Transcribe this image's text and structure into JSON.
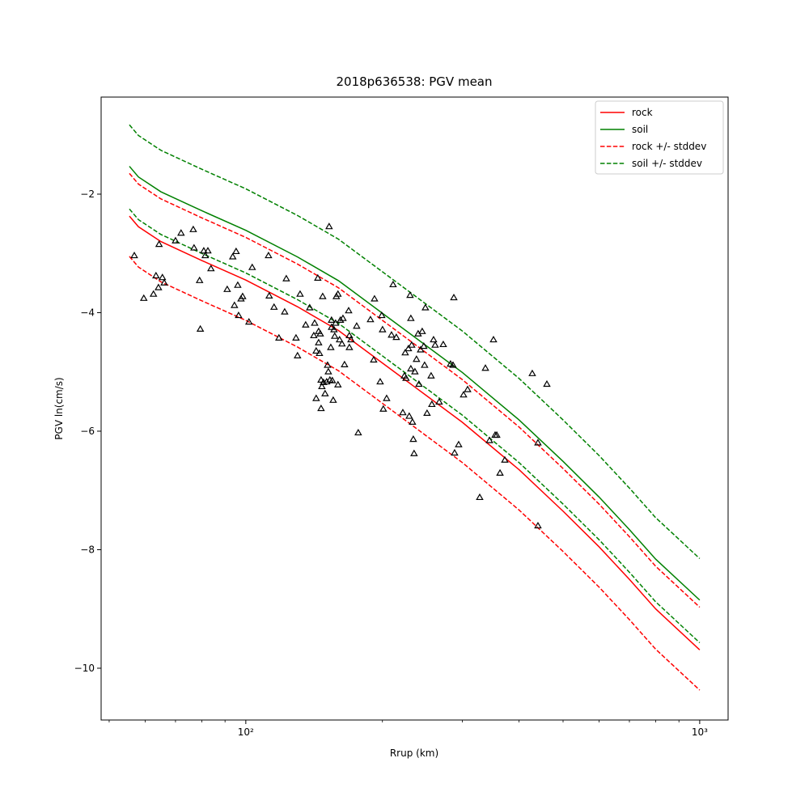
{
  "chart_data": {
    "type": "line",
    "title": "2018p636538: PGV mean",
    "xlabel": "Rrup (km)",
    "ylabel": "PGV ln(cm/s)",
    "xscale": "log",
    "xlim": [
      48.0,
      1155
    ],
    "ylim": [
      -10.874,
      -0.362
    ],
    "xticks": [
      {
        "value": 100,
        "label": "10²"
      },
      {
        "value": 1000,
        "label": "10³"
      }
    ],
    "xminor_ticks": [
      50,
      60,
      70,
      80,
      90,
      200,
      300,
      400,
      500,
      600,
      700,
      800,
      900
    ],
    "yticks": [
      {
        "value": -2,
        "label": "−2"
      },
      {
        "value": -4,
        "label": "−4"
      },
      {
        "value": -6,
        "label": "−6"
      },
      {
        "value": -8,
        "label": "−8"
      },
      {
        "value": -10,
        "label": "−10"
      }
    ],
    "legend": "upper right",
    "x": [
      55.4,
      58,
      65,
      80,
      100,
      130,
      160,
      200,
      250,
      300,
      400,
      500,
      600,
      700,
      800,
      1000
    ],
    "series": [
      {
        "name": "rock",
        "color": "#ff0000",
        "dashed": false,
        "values": [
          -2.37,
          -2.55,
          -2.8,
          -3.12,
          -3.45,
          -3.9,
          -4.3,
          -4.85,
          -5.4,
          -5.85,
          -6.65,
          -7.35,
          -7.95,
          -8.5,
          -9.0,
          -9.69
        ]
      },
      {
        "name": "soil",
        "color": "#008000",
        "dashed": false,
        "values": [
          -1.53,
          -1.71,
          -1.96,
          -2.28,
          -2.61,
          -3.06,
          -3.46,
          -4.01,
          -4.56,
          -5.01,
          -5.81,
          -6.51,
          -7.11,
          -7.66,
          -8.16,
          -8.85
        ]
      },
      {
        "name": "rock +/- stddev",
        "color": "#ff0000",
        "dashed": true,
        "values_upper": [
          -1.65,
          -1.83,
          -2.08,
          -2.4,
          -2.73,
          -3.18,
          -3.58,
          -4.13,
          -4.68,
          -5.13,
          -5.93,
          -6.63,
          -7.23,
          -7.78,
          -8.28,
          -8.97
        ],
        "values_lower": [
          -3.05,
          -3.23,
          -3.48,
          -3.8,
          -4.13,
          -4.58,
          -4.98,
          -5.53,
          -6.08,
          -6.53,
          -7.33,
          -8.03,
          -8.63,
          -9.18,
          -9.68,
          -10.37
        ]
      },
      {
        "name": "soil +/- stddev",
        "color": "#008000",
        "dashed": true,
        "values_upper": [
          -0.83,
          -1.01,
          -1.26,
          -1.58,
          -1.91,
          -2.36,
          -2.76,
          -3.31,
          -3.86,
          -4.31,
          -5.11,
          -5.81,
          -6.41,
          -6.96,
          -7.46,
          -8.15
        ],
        "values_lower": [
          -2.25,
          -2.43,
          -2.68,
          -3.0,
          -3.33,
          -3.78,
          -4.18,
          -4.73,
          -5.28,
          -5.73,
          -6.53,
          -7.23,
          -7.83,
          -8.38,
          -8.88,
          -9.57
        ]
      }
    ],
    "points": {
      "color": "#000000",
      "x": [
        56.8,
        59.6,
        62.6,
        63.4,
        64.2,
        64.4,
        65.5,
        66.1,
        70.0,
        72.0,
        76.6,
        76.9,
        79.1,
        79.4,
        80.8,
        81.4,
        82.5,
        83.8,
        91.0,
        93.6,
        94.4,
        95.2,
        96.0,
        96.4,
        97.6,
        98.4,
        101.6,
        103.3,
        112.2,
        112.6,
        115.4,
        118.3,
        121.8,
        122.8,
        129.0,
        130.0,
        131.7,
        135.5,
        138.3,
        141.2,
        141.8,
        142.9,
        142.9,
        144.1,
        144.7,
        144.7,
        145.3,
        145.9,
        146.5,
        146.5,
        147.1,
        147.7,
        148.3,
        149.5,
        150.7,
        151.4,
        152.0,
        152.6,
        153.2,
        153.9,
        154.5,
        154.5,
        155.1,
        155.8,
        156.4,
        157.0,
        157.7,
        158.3,
        159.6,
        159.6,
        160.9,
        161.6,
        162.9,
        163.7,
        165.0,
        168.5,
        169.1,
        169.1,
        170.5,
        175.5,
        176.9,
        188.2,
        191.3,
        192.1,
        197.7,
        199.3,
        200.1,
        200.9,
        204.3,
        209.4,
        211.1,
        214.6,
        221.8,
        223.6,
        224.5,
        225.4,
        228.2,
        229.1,
        230.1,
        231.0,
        231.0,
        232.0,
        232.9,
        233.9,
        234.8,
        235.8,
        237.7,
        239.7,
        240.7,
        242.7,
        244.7,
        246.7,
        247.7,
        248.7,
        250.8,
        256.0,
        257.0,
        259.2,
        261.3,
        266.7,
        272.3,
        282.5,
        286.1,
        287.3,
        288.4,
        294.4,
        301.8,
        308.1,
        327.6,
        337.2,
        344.2,
        351.3,
        354.2,
        357.2,
        363.1,
        372.1,
        427.7,
        440.2,
        440.2,
        460.6
      ],
      "y": [
        -3.04,
        -3.76,
        -3.69,
        -3.38,
        -3.58,
        -2.85,
        -3.41,
        -3.5,
        -2.79,
        -2.66,
        -2.6,
        -2.91,
        -3.46,
        -4.28,
        -2.96,
        -3.04,
        -2.96,
        -3.26,
        -3.61,
        -3.06,
        -3.88,
        -2.97,
        -3.54,
        -4.05,
        -3.77,
        -3.73,
        -4.16,
        -3.24,
        -3.04,
        -3.72,
        -3.91,
        -4.43,
        -3.99,
        -3.43,
        -4.43,
        -4.73,
        -3.69,
        -4.21,
        -3.92,
        -4.39,
        -4.18,
        -4.65,
        -5.45,
        -3.42,
        -4.32,
        -4.51,
        -4.69,
        -4.36,
        -5.14,
        -5.62,
        -5.25,
        -3.73,
        -5.18,
        -5.37,
        -5.17,
        -4.89,
        -5.0,
        -2.55,
        -5.14,
        -4.59,
        -4.13,
        -4.25,
        -5.15,
        -5.48,
        -4.29,
        -4.4,
        -4.18,
        -3.73,
        -5.22,
        -3.69,
        -4.46,
        -4.13,
        -4.53,
        -4.1,
        -4.88,
        -3.97,
        -4.39,
        -4.59,
        -4.46,
        -4.23,
        -6.03,
        -4.12,
        -4.8,
        -3.77,
        -5.17,
        -4.05,
        -4.29,
        -5.63,
        -5.45,
        -4.38,
        -3.53,
        -4.42,
        -5.69,
        -5.07,
        -4.68,
        -5.11,
        -4.61,
        -5.75,
        -3.71,
        -4.1,
        -4.95,
        -4.55,
        -5.85,
        -6.14,
        -6.38,
        -5.0,
        -4.79,
        -4.36,
        -5.21,
        -4.63,
        -4.32,
        -4.57,
        -4.89,
        -3.92,
        -5.7,
        -5.07,
        -5.55,
        -4.46,
        -4.55,
        -5.51,
        -4.54,
        -4.87,
        -4.89,
        -3.75,
        -6.37,
        -6.23,
        -5.39,
        -5.3,
        -7.12,
        -4.94,
        -6.16,
        -4.46,
        -6.07,
        -6.07,
        -6.71,
        -6.49,
        -5.03,
        -6.2,
        -7.6,
        -5.21
      ]
    }
  }
}
